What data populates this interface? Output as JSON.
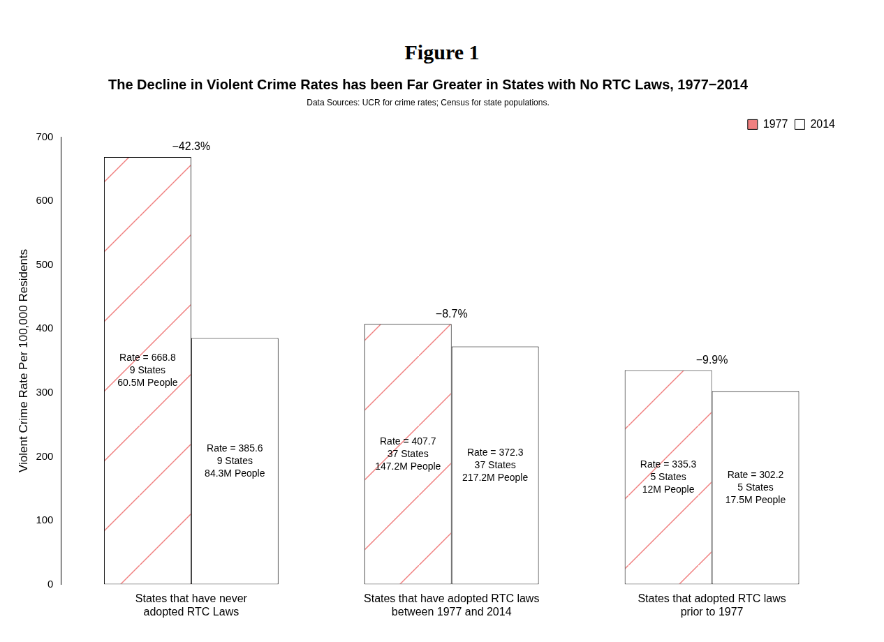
{
  "chart_data": {
    "type": "bar",
    "figure_title": "Figure 1",
    "title": "The Decline in Violent Crime Rates has been Far Greater in States with No RTC Laws, 1977−2014",
    "subtitle": "Data Sources: UCR for crime rates; Census for state populations.",
    "y_label": "Violent Crime Rate Per 100,000 Residents",
    "categories": [
      [
        "States that have never",
        "adopted RTC Laws"
      ],
      [
        "States that have adopted RTC laws",
        "between 1977 and 2014"
      ],
      [
        "States that adopted RTC laws",
        "prior to 1977"
      ]
    ],
    "series": [
      {
        "name": "1977",
        "color": "#f08080",
        "values": [
          668.8,
          407.7,
          335.3
        ],
        "value_labels": [
          [
            "Rate = 668.8",
            "9 States",
            "60.5M People"
          ],
          [
            "Rate = 407.7",
            "37 States",
            "147.2M People"
          ],
          [
            "Rate = 335.3",
            "5 States",
            "12M People"
          ]
        ]
      },
      {
        "name": "2014",
        "color": "#ffffff",
        "values": [
          385.6,
          372.3,
          302.2
        ],
        "value_labels": [
          [
            "Rate = 385.6",
            "9 States",
            "84.3M People"
          ],
          [
            "Rate = 372.3",
            "37 States",
            "217.2M People"
          ],
          [
            "Rate = 302.2",
            "5 States",
            "17.5M People"
          ]
        ]
      }
    ],
    "annotations": [
      "−42.3%",
      "−8.7%",
      "−9.9%"
    ],
    "ylim": [
      0,
      700
    ],
    "yticks": [
      0,
      100,
      200,
      300,
      400,
      500,
      600,
      700
    ],
    "grid": false,
    "legend": "top right",
    "data_labels": true
  }
}
